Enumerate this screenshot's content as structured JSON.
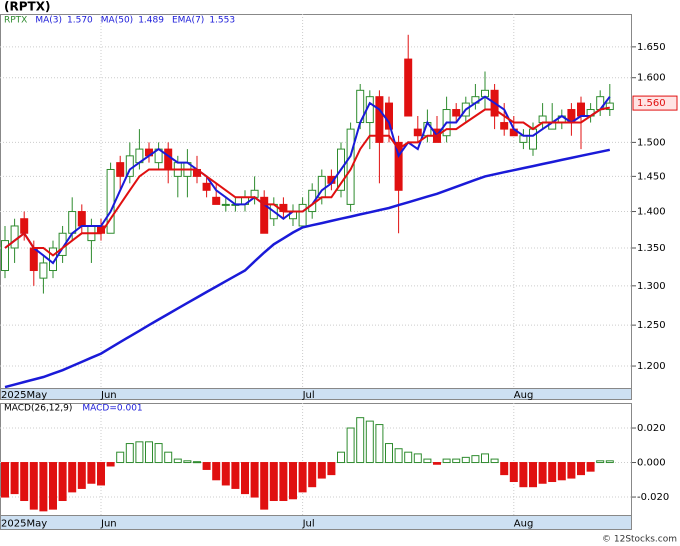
{
  "chart_data": [
    {
      "type": "candlestick",
      "title": "(RPTX)",
      "ticker": "RPTX",
      "log_scale": true,
      "grid": true,
      "up_color": "#2e8b2e",
      "down_color": "#e01010",
      "categories": [
        "2025May",
        null,
        null,
        null,
        null,
        null,
        null,
        null,
        null,
        null,
        "Jun",
        null,
        null,
        null,
        null,
        null,
        null,
        null,
        null,
        null,
        null,
        null,
        null,
        null,
        null,
        null,
        null,
        null,
        null,
        null,
        null,
        "Jul",
        null,
        null,
        null,
        null,
        null,
        null,
        null,
        null,
        null,
        null,
        null,
        null,
        null,
        null,
        null,
        null,
        null,
        null,
        null,
        null,
        null,
        "Aug",
        null,
        null,
        null,
        null,
        null,
        null,
        null,
        null,
        null,
        null
      ],
      "open": [
        1.32,
        1.35,
        1.39,
        1.35,
        1.31,
        1.32,
        1.34,
        1.37,
        1.4,
        1.36,
        1.38,
        1.37,
        1.47,
        1.45,
        1.47,
        1.49,
        1.47,
        1.49,
        1.45,
        1.45,
        1.46,
        1.44,
        1.42,
        1.41,
        1.41,
        1.41,
        1.42,
        1.42,
        1.39,
        1.41,
        1.39,
        1.38,
        1.4,
        1.42,
        1.45,
        1.43,
        1.41,
        1.53,
        1.53,
        1.57,
        1.56,
        1.5,
        1.63,
        1.52,
        1.51,
        1.52,
        1.51,
        1.55,
        1.54,
        1.56,
        1.57,
        1.58,
        1.53,
        1.52,
        1.5,
        1.49,
        1.53,
        1.52,
        1.53,
        1.55,
        1.56,
        1.54,
        1.55,
        1.55
      ],
      "high": [
        1.38,
        1.39,
        1.4,
        1.36,
        1.34,
        1.36,
        1.38,
        1.42,
        1.41,
        1.39,
        1.39,
        1.47,
        1.48,
        1.5,
        1.52,
        1.5,
        1.5,
        1.5,
        1.48,
        1.49,
        1.48,
        1.45,
        1.44,
        1.42,
        1.42,
        1.43,
        1.45,
        1.43,
        1.42,
        1.42,
        1.41,
        1.42,
        1.44,
        1.46,
        1.46,
        1.5,
        1.53,
        1.59,
        1.58,
        1.58,
        1.57,
        1.51,
        1.67,
        1.54,
        1.55,
        1.54,
        1.57,
        1.56,
        1.57,
        1.59,
        1.61,
        1.59,
        1.56,
        1.54,
        1.52,
        1.53,
        1.56,
        1.56,
        1.55,
        1.56,
        1.57,
        1.56,
        1.58,
        1.59
      ],
      "low": [
        1.31,
        1.33,
        1.36,
        1.3,
        1.29,
        1.31,
        1.33,
        1.36,
        1.37,
        1.33,
        1.36,
        1.37,
        1.43,
        1.44,
        1.46,
        1.47,
        1.46,
        1.44,
        1.42,
        1.42,
        1.44,
        1.42,
        1.41,
        1.4,
        1.4,
        1.4,
        1.41,
        1.37,
        1.38,
        1.39,
        1.38,
        1.38,
        1.39,
        1.41,
        1.43,
        1.42,
        1.4,
        1.52,
        1.49,
        1.44,
        1.5,
        1.37,
        1.54,
        1.5,
        1.5,
        1.5,
        1.5,
        1.53,
        1.53,
        1.55,
        1.55,
        1.52,
        1.51,
        1.51,
        1.49,
        1.48,
        1.52,
        1.52,
        1.52,
        1.51,
        1.49,
        1.53,
        1.54,
        1.54
      ],
      "close": [
        1.36,
        1.38,
        1.37,
        1.32,
        1.33,
        1.35,
        1.37,
        1.4,
        1.38,
        1.38,
        1.37,
        1.46,
        1.45,
        1.48,
        1.49,
        1.48,
        1.49,
        1.46,
        1.47,
        1.47,
        1.45,
        1.43,
        1.41,
        1.41,
        1.41,
        1.42,
        1.43,
        1.37,
        1.41,
        1.4,
        1.4,
        1.41,
        1.43,
        1.45,
        1.44,
        1.49,
        1.52,
        1.58,
        1.57,
        1.5,
        1.52,
        1.43,
        1.54,
        1.51,
        1.53,
        1.5,
        1.55,
        1.54,
        1.56,
        1.57,
        1.58,
        1.54,
        1.52,
        1.51,
        1.51,
        1.52,
        1.54,
        1.53,
        1.54,
        1.53,
        1.54,
        1.55,
        1.57,
        1.56
      ],
      "series": [
        {
          "name": "MA(3)",
          "color": "#1a1ad8",
          "width": 2,
          "last_label": "1.570",
          "values": [
            1.35,
            1.36,
            1.37,
            1.35,
            1.34,
            1.33,
            1.35,
            1.37,
            1.38,
            1.38,
            1.38,
            1.4,
            1.43,
            1.46,
            1.47,
            1.48,
            1.49,
            1.48,
            1.47,
            1.47,
            1.46,
            1.45,
            1.43,
            1.42,
            1.41,
            1.41,
            1.42,
            1.41,
            1.4,
            1.39,
            1.4,
            1.4,
            1.41,
            1.43,
            1.44,
            1.46,
            1.48,
            1.53,
            1.56,
            1.55,
            1.53,
            1.48,
            1.5,
            1.49,
            1.53,
            1.51,
            1.53,
            1.53,
            1.55,
            1.56,
            1.57,
            1.56,
            1.55,
            1.52,
            1.51,
            1.51,
            1.52,
            1.53,
            1.54,
            1.53,
            1.54,
            1.54,
            1.55,
            1.57
          ]
        },
        {
          "name": "MA(50)",
          "color": "#1a1ad8",
          "width": 2.5,
          "last_label": "1.489",
          "values": [
            1.175,
            1.178,
            1.181,
            1.184,
            1.187,
            1.191,
            1.195,
            1.2,
            1.205,
            1.21,
            1.215,
            1.222,
            1.229,
            1.236,
            1.243,
            1.25,
            1.257,
            1.264,
            1.271,
            1.278,
            1.285,
            1.292,
            1.299,
            1.306,
            1.313,
            1.32,
            1.332,
            1.344,
            1.355,
            1.363,
            1.371,
            1.378,
            1.381,
            1.384,
            1.387,
            1.39,
            1.393,
            1.396,
            1.399,
            1.402,
            1.405,
            1.409,
            1.413,
            1.417,
            1.421,
            1.425,
            1.43,
            1.435,
            1.44,
            1.445,
            1.45,
            1.453,
            1.456,
            1.459,
            1.462,
            1.465,
            1.468,
            1.471,
            1.474,
            1.477,
            1.48,
            1.483,
            1.486,
            1.489
          ]
        },
        {
          "name": "EMA(7)",
          "color": "#e01010",
          "width": 2,
          "last_label": "1.553",
          "values": [
            1.35,
            1.36,
            1.37,
            1.35,
            1.35,
            1.34,
            1.35,
            1.36,
            1.37,
            1.37,
            1.37,
            1.39,
            1.41,
            1.43,
            1.45,
            1.46,
            1.46,
            1.46,
            1.46,
            1.46,
            1.46,
            1.45,
            1.44,
            1.43,
            1.42,
            1.42,
            1.42,
            1.41,
            1.41,
            1.4,
            1.4,
            1.4,
            1.41,
            1.42,
            1.42,
            1.44,
            1.46,
            1.49,
            1.51,
            1.51,
            1.51,
            1.49,
            1.5,
            1.5,
            1.51,
            1.51,
            1.52,
            1.52,
            1.53,
            1.54,
            1.55,
            1.55,
            1.54,
            1.53,
            1.53,
            1.52,
            1.53,
            1.53,
            1.53,
            1.53,
            1.53,
            1.54,
            1.55,
            1.553
          ]
        }
      ],
      "last_price": {
        "value": 1.56,
        "label": "1.560"
      },
      "ylim": [
        1.174,
        1.705
      ],
      "yticks": [
        {
          "value": 1.2,
          "label": "1.200"
        },
        {
          "value": 1.25,
          "label": "1.250"
        },
        {
          "value": 1.3,
          "label": "1.300"
        },
        {
          "value": 1.35,
          "label": "1.350"
        },
        {
          "value": 1.4,
          "label": "1.400"
        },
        {
          "value": 1.45,
          "label": "1.450"
        },
        {
          "value": 1.5,
          "label": "1.500"
        },
        {
          "value": 1.6,
          "label": "1.600"
        },
        {
          "value": 1.65,
          "label": "1.650"
        }
      ]
    },
    {
      "type": "bar",
      "title": "MACD(26,12,9)",
      "annotation": "MACD=0.001",
      "grid": true,
      "up_color": "#2e8b2e",
      "down_color": "#e01010",
      "categories": [
        "2025May",
        null,
        null,
        null,
        null,
        null,
        null,
        null,
        null,
        null,
        "Jun",
        null,
        null,
        null,
        null,
        null,
        null,
        null,
        null,
        null,
        null,
        null,
        null,
        null,
        null,
        null,
        null,
        null,
        null,
        null,
        null,
        "Jul",
        null,
        null,
        null,
        null,
        null,
        null,
        null,
        null,
        null,
        null,
        null,
        null,
        null,
        null,
        null,
        null,
        null,
        null,
        null,
        null,
        null,
        "Aug",
        null,
        null,
        null,
        null,
        null,
        null,
        null,
        null,
        null,
        null
      ],
      "values": [
        -0.02,
        -0.018,
        -0.022,
        -0.027,
        -0.028,
        -0.027,
        -0.022,
        -0.017,
        -0.015,
        -0.012,
        -0.013,
        -0.002,
        0.006,
        0.011,
        0.012,
        0.012,
        0.011,
        0.006,
        0.002,
        0.001,
        0.0005,
        -0.004,
        -0.01,
        -0.013,
        -0.015,
        -0.018,
        -0.02,
        -0.027,
        -0.022,
        -0.022,
        -0.021,
        -0.017,
        -0.014,
        -0.009,
        -0.007,
        0.006,
        0.02,
        0.026,
        0.024,
        0.022,
        0.011,
        0.008,
        0.006,
        0.005,
        0.002,
        -0.001,
        0.002,
        0.002,
        0.003,
        0.004,
        0.005,
        0.002,
        -0.007,
        -0.011,
        -0.014,
        -0.014,
        -0.012,
        -0.011,
        -0.01,
        -0.009,
        -0.007,
        -0.005,
        0.001,
        0.001
      ],
      "ylim": [
        -0.0304,
        0.0345
      ],
      "yticks": [
        {
          "value": -0.02,
          "label": "-0.020"
        },
        {
          "value": 0,
          "label": "0.000"
        },
        {
          "value": 0.02,
          "label": "0.020"
        }
      ]
    }
  ],
  "watermark": "© 12Stocks.com"
}
